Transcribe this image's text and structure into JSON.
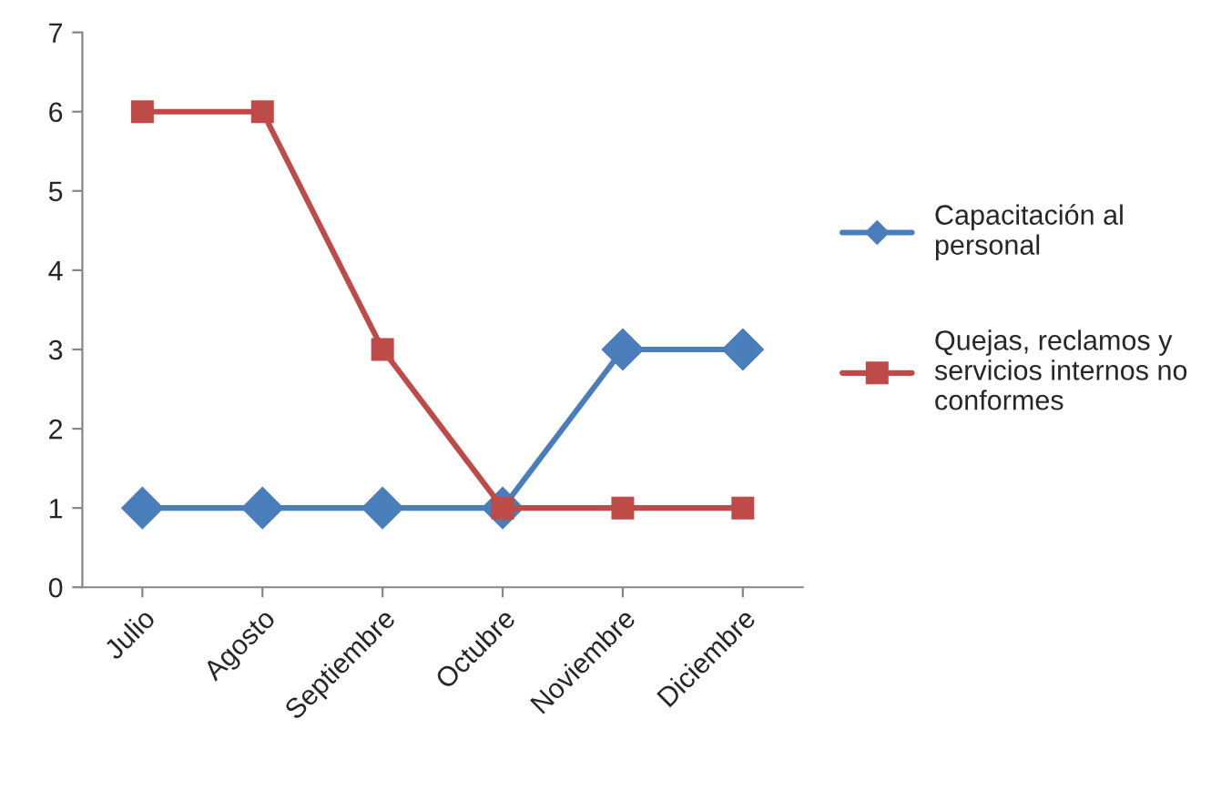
{
  "chart_data": {
    "type": "line",
    "categories": [
      "Julio",
      "Agosto",
      "Septiembre",
      "Octubre",
      "Noviembre",
      "Diciembre"
    ],
    "series": [
      {
        "name": "Capacitación al personal",
        "color": "#4a7ebb",
        "marker": "diamond",
        "values": [
          1,
          1,
          1,
          1,
          3,
          3
        ]
      },
      {
        "name": "Quejas, reclamos y servicios internos no conformes",
        "color": "#be4b48",
        "marker": "square",
        "values": [
          6,
          6,
          3,
          1,
          1,
          1
        ]
      }
    ],
    "ylim": [
      0,
      7
    ],
    "yticks": [
      0,
      1,
      2,
      3,
      4,
      5,
      6,
      7
    ],
    "grid": false,
    "legend": "right",
    "line_style": "solid"
  }
}
